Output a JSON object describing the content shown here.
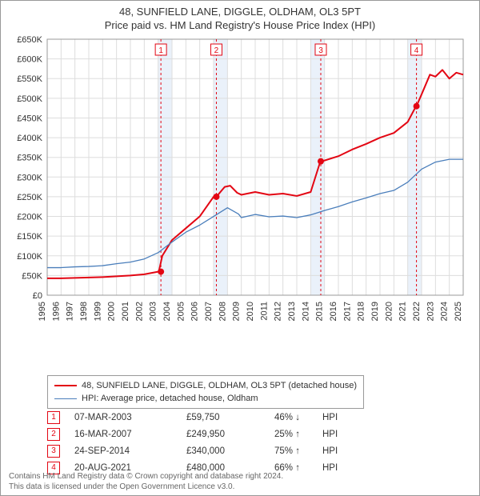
{
  "titles": {
    "line1": "48, SUNFIELD LANE, DIGGLE, OLDHAM, OL3 5PT",
    "line2": "Price paid vs. HM Land Registry's House Price Index (HPI)"
  },
  "chart": {
    "type": "line",
    "background_color": "#ffffff",
    "shade_color": "#eaf1fa",
    "plot_border_color": "#999999",
    "grid_color": "#dddddd",
    "axis_text_color": "#333333",
    "axis_fontsize": 11,
    "x": {
      "years": [
        1995,
        1996,
        1997,
        1998,
        1999,
        2000,
        2001,
        2002,
        2003,
        2004,
        2005,
        2006,
        2007,
        2008,
        2009,
        2010,
        2011,
        2012,
        2013,
        2014,
        2015,
        2016,
        2017,
        2018,
        2019,
        2020,
        2021,
        2022,
        2023,
        2024,
        2025
      ],
      "shaded_years": [
        [
          2003,
          2004
        ],
        [
          2007,
          2008
        ],
        [
          2014,
          2015
        ],
        [
          2021,
          2022
        ]
      ]
    },
    "y": {
      "min": 0,
      "max": 650000,
      "step": 50000,
      "labels": [
        "£0",
        "£50K",
        "£100K",
        "£150K",
        "£200K",
        "£250K",
        "£300K",
        "£350K",
        "£400K",
        "£450K",
        "£500K",
        "£550K",
        "£600K",
        "£650K"
      ]
    },
    "series": [
      {
        "name": "48, SUNFIELD LANE, DIGGLE, OLDHAM, OL3 5PT (detached house)",
        "color": "#e30613",
        "width": 2,
        "points": [
          [
            1995,
            43000
          ],
          [
            1996,
            43000
          ],
          [
            1997,
            44000
          ],
          [
            1998,
            45000
          ],
          [
            1999,
            46000
          ],
          [
            2000,
            48000
          ],
          [
            2001,
            50000
          ],
          [
            2002,
            53000
          ],
          [
            2003,
            59750
          ],
          [
            2003.05,
            59750
          ],
          [
            2003.3,
            100000
          ],
          [
            2004,
            140000
          ],
          [
            2005,
            170000
          ],
          [
            2006,
            200000
          ],
          [
            2007,
            249950
          ],
          [
            2007.2,
            249950
          ],
          [
            2007.8,
            275000
          ],
          [
            2008.2,
            278000
          ],
          [
            2008.7,
            260000
          ],
          [
            2009,
            255000
          ],
          [
            2010,
            262000
          ],
          [
            2011,
            255000
          ],
          [
            2012,
            258000
          ],
          [
            2013,
            252000
          ],
          [
            2014,
            262000
          ],
          [
            2014.7,
            340000
          ],
          [
            2014.73,
            340000
          ],
          [
            2015,
            342000
          ],
          [
            2016,
            353000
          ],
          [
            2017,
            370000
          ],
          [
            2018,
            384000
          ],
          [
            2019,
            400000
          ],
          [
            2020,
            412000
          ],
          [
            2021,
            440000
          ],
          [
            2021.6,
            480000
          ],
          [
            2021.63,
            480000
          ],
          [
            2022,
            510000
          ],
          [
            2022.6,
            560000
          ],
          [
            2023,
            555000
          ],
          [
            2023.5,
            572000
          ],
          [
            2024,
            550000
          ],
          [
            2024.5,
            565000
          ],
          [
            2025,
            560000
          ]
        ]
      },
      {
        "name": "HPI: Average price, detached house, Oldham",
        "color": "#4a7ebb",
        "width": 1.3,
        "points": [
          [
            1995,
            70000
          ],
          [
            1996,
            70000
          ],
          [
            1997,
            72000
          ],
          [
            1998,
            73000
          ],
          [
            1999,
            75000
          ],
          [
            2000,
            80000
          ],
          [
            2001,
            84000
          ],
          [
            2002,
            92000
          ],
          [
            2003,
            108000
          ],
          [
            2004,
            135000
          ],
          [
            2005,
            160000
          ],
          [
            2006,
            178000
          ],
          [
            2007,
            200000
          ],
          [
            2008,
            222000
          ],
          [
            2008.8,
            206000
          ],
          [
            2009,
            197000
          ],
          [
            2010,
            205000
          ],
          [
            2011,
            199000
          ],
          [
            2012,
            201000
          ],
          [
            2013,
            197000
          ],
          [
            2014,
            204000
          ],
          [
            2015,
            215000
          ],
          [
            2016,
            225000
          ],
          [
            2017,
            237000
          ],
          [
            2018,
            247000
          ],
          [
            2019,
            258000
          ],
          [
            2020,
            266000
          ],
          [
            2021,
            287000
          ],
          [
            2022,
            320000
          ],
          [
            2023,
            338000
          ],
          [
            2024,
            345000
          ],
          [
            2025,
            345000
          ]
        ]
      }
    ],
    "sale_markers": [
      {
        "n": "1",
        "year": 2003.2,
        "price": 59750,
        "color": "#e30613"
      },
      {
        "n": "2",
        "year": 2007.2,
        "price": 249950,
        "color": "#e30613"
      },
      {
        "n": "3",
        "year": 2014.73,
        "price": 340000,
        "color": "#e30613"
      },
      {
        "n": "4",
        "year": 2021.63,
        "price": 480000,
        "color": "#e30613"
      }
    ],
    "dashed_line_color": "#e30613"
  },
  "legend": {
    "items": [
      {
        "label": "48, SUNFIELD LANE, DIGGLE, OLDHAM, OL3 5PT (detached house)",
        "color": "#e30613",
        "width": 2
      },
      {
        "label": "HPI: Average price, detached house, Oldham",
        "color": "#4a7ebb",
        "width": 1.3
      }
    ]
  },
  "sales_table": {
    "rows": [
      {
        "n": "1",
        "date": "07-MAR-2003",
        "price": "£59,750",
        "pct": "46%",
        "arrow": "↓",
        "vs": "HPI"
      },
      {
        "n": "2",
        "date": "16-MAR-2007",
        "price": "£249,950",
        "pct": "25%",
        "arrow": "↑",
        "vs": "HPI"
      },
      {
        "n": "3",
        "date": "24-SEP-2014",
        "price": "£340,000",
        "pct": "75%",
        "arrow": "↑",
        "vs": "HPI"
      },
      {
        "n": "4",
        "date": "20-AUG-2021",
        "price": "£480,000",
        "pct": "66%",
        "arrow": "↑",
        "vs": "HPI"
      }
    ],
    "marker_color": "#e30613"
  },
  "footer": {
    "line1": "Contains HM Land Registry data © Crown copyright and database right 2024.",
    "line2": "This data is licensed under the Open Government Licence v3.0."
  }
}
